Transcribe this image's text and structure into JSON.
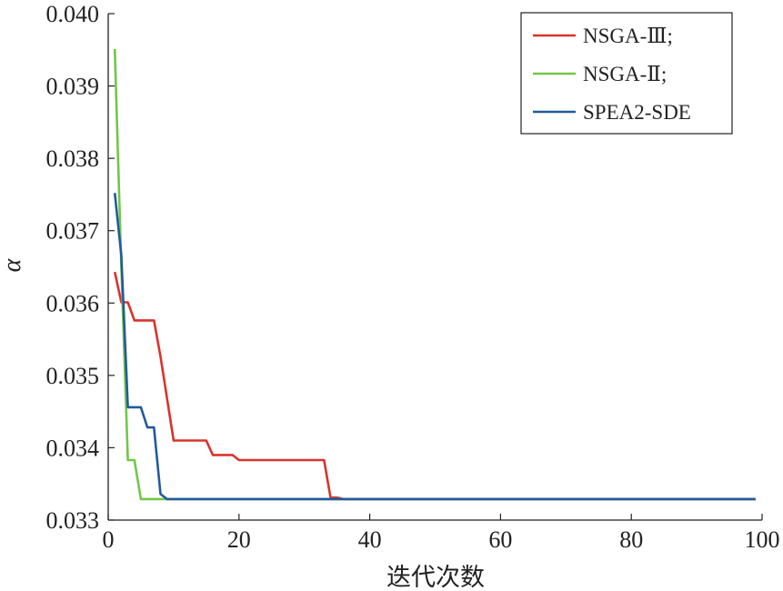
{
  "chart_data": {
    "type": "line",
    "title": "",
    "xlabel": "迭代次数",
    "ylabel": "α",
    "xlim": [
      0,
      100
    ],
    "ylim": [
      0.033,
      0.04
    ],
    "x_ticks": [
      0,
      20,
      40,
      60,
      80,
      100
    ],
    "x_tick_labels": [
      "0",
      "20",
      "40",
      "60",
      "80",
      "100"
    ],
    "y_ticks": [
      0.033,
      0.034,
      0.035,
      0.036,
      0.037,
      0.038,
      0.039,
      0.04
    ],
    "y_tick_labels": [
      "0.033",
      "0.034",
      "0.035",
      "0.036",
      "0.037",
      "0.038",
      "0.039",
      "0.040"
    ],
    "grid": false,
    "legend_position": "top-right",
    "series": [
      {
        "name": "NSGA-Ⅲ;",
        "color": "#d7342c",
        "points": [
          [
            1,
            0.03643
          ],
          [
            2,
            0.03601
          ],
          [
            3,
            0.03601
          ],
          [
            4,
            0.03576
          ],
          [
            5,
            0.03576
          ],
          [
            6,
            0.03576
          ],
          [
            7,
            0.03576
          ],
          [
            8,
            0.03526
          ],
          [
            9,
            0.03468
          ],
          [
            10,
            0.0341
          ],
          [
            11,
            0.0341
          ],
          [
            12,
            0.0341
          ],
          [
            13,
            0.0341
          ],
          [
            14,
            0.0341
          ],
          [
            15,
            0.0341
          ],
          [
            16,
            0.0339
          ],
          [
            17,
            0.0339
          ],
          [
            18,
            0.0339
          ],
          [
            19,
            0.0339
          ],
          [
            20,
            0.03383
          ],
          [
            25,
            0.03383
          ],
          [
            30,
            0.03383
          ],
          [
            33,
            0.03383
          ],
          [
            34,
            0.03331
          ],
          [
            35,
            0.03331
          ],
          [
            36,
            0.03329
          ],
          [
            50,
            0.03329
          ],
          [
            70,
            0.03329
          ],
          [
            99,
            0.03329
          ]
        ]
      },
      {
        "name": "NSGA-Ⅱ;",
        "color": "#72c64a",
        "points": [
          [
            1,
            0.03951
          ],
          [
            2,
            0.03651
          ],
          [
            3,
            0.03383
          ],
          [
            4,
            0.03383
          ],
          [
            5,
            0.03329
          ],
          [
            6,
            0.03329
          ],
          [
            10,
            0.03329
          ],
          [
            20,
            0.03329
          ],
          [
            50,
            0.03329
          ],
          [
            99,
            0.03329
          ]
        ]
      },
      {
        "name": "SPEA2-SDE",
        "color": "#225a9c",
        "points": [
          [
            1,
            0.03752
          ],
          [
            2,
            0.03666
          ],
          [
            3,
            0.03456
          ],
          [
            4,
            0.03456
          ],
          [
            5,
            0.03456
          ],
          [
            6,
            0.03428
          ],
          [
            7,
            0.03428
          ],
          [
            8,
            0.03336
          ],
          [
            9,
            0.03329
          ],
          [
            20,
            0.03329
          ],
          [
            50,
            0.03329
          ],
          [
            99,
            0.03329
          ]
        ]
      }
    ]
  }
}
